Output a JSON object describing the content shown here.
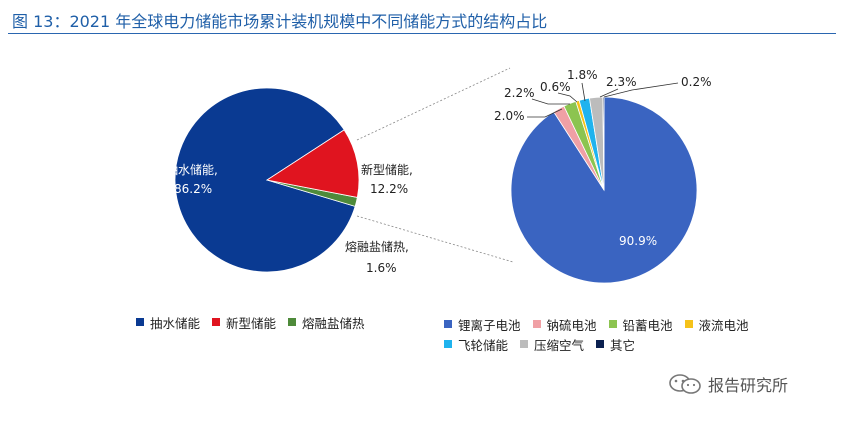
{
  "title": "图 13：2021 年全球电力储能市场累计装机规模中不同储能方式的结构占比",
  "watermark": "报告研究所",
  "colors": {
    "title": "#1f5fa8",
    "pumped": "#0a3a92",
    "new": "#e0141f",
    "molten": "#4e8a3a",
    "lithium": "#3a64c1",
    "nas": "#f0a0a5",
    "lead": "#8cc450",
    "flow": "#f5c21a",
    "flywheel": "#1fb3ee",
    "caes": "#bcbcbc",
    "other": "#0b2050"
  },
  "chart_data": [
    {
      "type": "pie",
      "title": "",
      "slices": [
        {
          "name": "抽水储能",
          "value": 86.2,
          "label_name": "抽水储能,",
          "label_value": "86.2%",
          "color": "#0a3a92"
        },
        {
          "name": "新型储能",
          "value": 12.2,
          "label_name": "新型储能,",
          "label_value": "12.2%",
          "color": "#e0141f"
        },
        {
          "name": "熔融盐储热",
          "value": 1.6,
          "label_name": "熔融盐储热,",
          "label_value": "1.6%",
          "color": "#4e8a3a"
        }
      ],
      "legend": [
        "抽水储能",
        "新型储能",
        "熔融盐储热"
      ],
      "legend_position": "bottom"
    },
    {
      "type": "pie",
      "title": "",
      "slices": [
        {
          "name": "锂离子电池",
          "value": 90.9,
          "label": "90.9%",
          "color": "#3a64c1"
        },
        {
          "name": "钠硫电池",
          "value": 2.0,
          "label": "2.0%",
          "color": "#f0a0a5"
        },
        {
          "name": "铅蓄电池",
          "value": 2.2,
          "label": "2.2%",
          "color": "#8cc450"
        },
        {
          "name": "液流电池",
          "value": 0.6,
          "label": "0.6%",
          "color": "#f5c21a"
        },
        {
          "name": "飞轮储能",
          "value": 1.8,
          "label": "1.8%",
          "color": "#1fb3ee"
        },
        {
          "name": "压缩空气",
          "value": 2.3,
          "label": "2.3%",
          "color": "#bcbcbc"
        },
        {
          "name": "其它",
          "value": 0.2,
          "label": "0.2%",
          "color": "#0b2050"
        }
      ],
      "legend": [
        "锂离子电池",
        "钠硫电池",
        "铅蓄电池",
        "液流电池",
        "飞轮储能",
        "压缩空气",
        "其它"
      ],
      "legend_position": "bottom"
    }
  ]
}
